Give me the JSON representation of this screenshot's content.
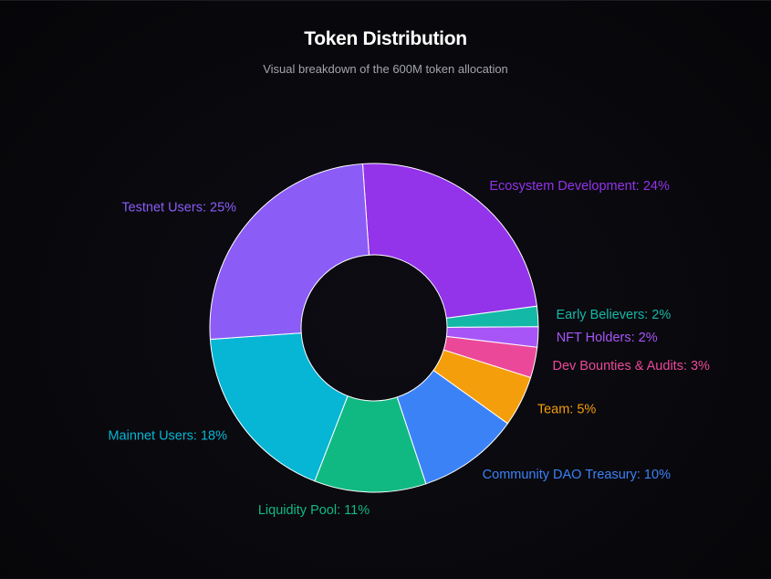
{
  "header": {
    "title": "Token Distribution",
    "subtitle": "Visual breakdown of the 600M token allocation"
  },
  "chart_data": {
    "type": "pie",
    "variant": "doughnut",
    "title": "Token Distribution",
    "subtitle": "Visual breakdown of the 600M token allocation",
    "unit": "%",
    "slices": [
      {
        "label": "Ecosystem Development",
        "value": 24,
        "color": "#9333ea"
      },
      {
        "label": "Early Believers",
        "value": 2,
        "color": "#14b8a6"
      },
      {
        "label": "NFT Holders",
        "value": 2,
        "color": "#a855f7"
      },
      {
        "label": "Dev Bounties & Audits",
        "value": 3,
        "color": "#ec4899"
      },
      {
        "label": "Team",
        "value": 5,
        "color": "#f59e0b"
      },
      {
        "label": "Community DAO Treasury",
        "value": 10,
        "color": "#3b82f6"
      },
      {
        "label": "Liquidity Pool",
        "value": 11,
        "color": "#10b981"
      },
      {
        "label": "Mainnet Users",
        "value": 18,
        "color": "#06b6d4"
      },
      {
        "label": "Testnet Users",
        "value": 25,
        "color": "#8b5cf6"
      }
    ],
    "legend": "none",
    "data_labels": "outside"
  }
}
